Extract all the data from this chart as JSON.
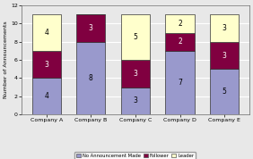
{
  "categories": [
    "Company A",
    "Company B",
    "Company C",
    "Company D",
    "Company E"
  ],
  "no_announcement": [
    4,
    8,
    3,
    7,
    5
  ],
  "follower": [
    3,
    3,
    3,
    2,
    3
  ],
  "leader": [
    4,
    0,
    5,
    2,
    3
  ],
  "colors": {
    "no_announcement": "#9999cc",
    "follower": "#800040",
    "leader": "#ffffcc"
  },
  "ylabel": "Number of Announcements",
  "ylim": [
    0,
    12
  ],
  "yticks": [
    0,
    2,
    4,
    6,
    8,
    10,
    12
  ],
  "legend_labels": [
    "No Announcement Made",
    "Follower",
    "Leader"
  ],
  "bar_width": 0.65,
  "background_color": "#e8e8e8",
  "grid_color": "#ffffff",
  "text_fontsize": 5.5,
  "label_fontsize": 4.5,
  "tick_fontsize": 4.5
}
